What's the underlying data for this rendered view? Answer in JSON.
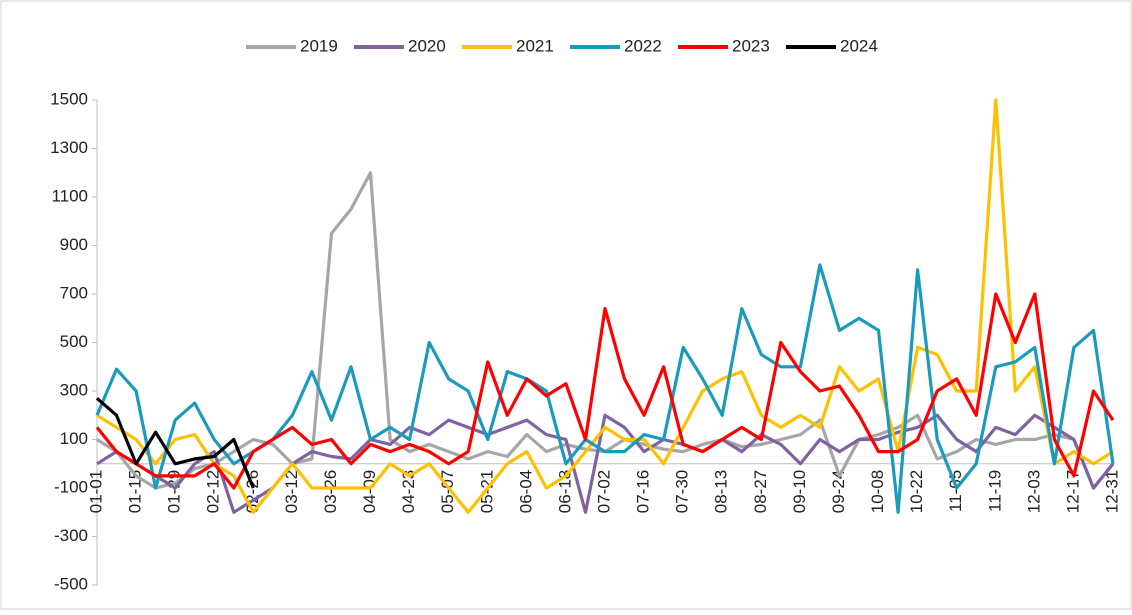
{
  "chart_data": {
    "type": "line",
    "categories": [
      "01-01",
      null,
      "01-15",
      null,
      "01-29",
      null,
      "02-12",
      null,
      "02-26",
      null,
      "03-12",
      null,
      "03-26",
      null,
      "04-09",
      null,
      "04-23",
      null,
      "05-07",
      null,
      "05-21",
      null,
      "06-04",
      null,
      "06-18",
      null,
      "07-02",
      null,
      "07-16",
      null,
      "07-30",
      null,
      "08-13",
      null,
      "08-27",
      null,
      "09-10",
      null,
      "09-24",
      null,
      "10-08",
      null,
      "10-22",
      null,
      "11-05",
      null,
      "11-19",
      null,
      "12-03",
      null,
      "12-17",
      null,
      "12-31"
    ],
    "series": [
      {
        "name": "2019",
        "color": "#a6a6a6",
        "values": [
          100,
          50,
          -50,
          -100,
          -80,
          -20,
          0,
          50,
          100,
          80,
          0,
          20,
          950,
          1050,
          1200,
          100,
          50,
          80,
          50,
          20,
          50,
          30,
          120,
          50,
          80,
          60,
          50,
          100,
          80,
          60,
          50,
          80,
          100,
          70,
          80,
          100,
          120,
          180,
          -50,
          100,
          120,
          150,
          200,
          20,
          50,
          100,
          80,
          100,
          100,
          120,
          100,
          -100,
          0
        ]
      },
      {
        "name": "2020",
        "color": "#7f63a1",
        "values": [
          0,
          50,
          0,
          -50,
          -100,
          0,
          50,
          -200,
          -150,
          -100,
          0,
          50,
          30,
          20,
          100,
          80,
          150,
          120,
          180,
          150,
          120,
          150,
          180,
          120,
          100,
          -200,
          200,
          150,
          50,
          100,
          80,
          50,
          100,
          50,
          120,
          80,
          0,
          100,
          50,
          100,
          100,
          130,
          150,
          200,
          100,
          50,
          150,
          120,
          200,
          150,
          100,
          -100,
          0
        ]
      },
      {
        "name": "2021",
        "color": "#ffc000",
        "values": [
          200,
          150,
          100,
          0,
          100,
          120,
          0,
          -50,
          -200,
          -100,
          0,
          -100,
          -100,
          -100,
          -100,
          0,
          -50,
          0,
          -100,
          -200,
          -100,
          0,
          50,
          -100,
          -50,
          50,
          150,
          100,
          100,
          0,
          150,
          300,
          350,
          380,
          200,
          150,
          200,
          150,
          400,
          300,
          350,
          50,
          480,
          450,
          300,
          300,
          1500,
          300,
          400,
          0,
          50,
          0,
          50
        ]
      },
      {
        "name": "2022",
        "color": "#1a9bbd",
        "values": [
          200,
          390,
          300,
          -100,
          180,
          250,
          100,
          0,
          50,
          100,
          200,
          380,
          180,
          400,
          100,
          150,
          100,
          500,
          350,
          300,
          100,
          380,
          350,
          300,
          0,
          100,
          50,
          50,
          120,
          100,
          480,
          350,
          200,
          640,
          450,
          400,
          400,
          820,
          550,
          600,
          550,
          -200,
          800,
          100,
          -100,
          0,
          400,
          420,
          480,
          0,
          480,
          550,
          0
        ]
      },
      {
        "name": "2023",
        "color": "#ff0000",
        "values": [
          150,
          50,
          0,
          -50,
          -50,
          -50,
          0,
          -100,
          50,
          100,
          150,
          80,
          100,
          0,
          80,
          50,
          80,
          50,
          0,
          50,
          420,
          200,
          350,
          280,
          330,
          100,
          640,
          350,
          200,
          400,
          80,
          50,
          100,
          150,
          100,
          500,
          380,
          300,
          320,
          200,
          50,
          50,
          100,
          300,
          350,
          200,
          700,
          500,
          700,
          100,
          -50,
          300,
          180
        ]
      },
      {
        "name": "2024",
        "color": "#000000",
        "values": [
          270,
          200,
          0,
          130,
          0,
          20,
          30,
          100,
          -100,
          null,
          null,
          null,
          null,
          null,
          null,
          null,
          null,
          null,
          null,
          null,
          null,
          null,
          null,
          null,
          null,
          null,
          null,
          null,
          null,
          null,
          null,
          null,
          null,
          null,
          null,
          null,
          null,
          null,
          null,
          null,
          null,
          null,
          null,
          null,
          null,
          null,
          null,
          null,
          null,
          null,
          null,
          null,
          null
        ]
      }
    ],
    "ylim": [
      -500,
      1500
    ],
    "yticks": [
      -500,
      -300,
      -100,
      100,
      300,
      500,
      700,
      900,
      1100,
      1300,
      1500
    ],
    "legend": "top"
  }
}
